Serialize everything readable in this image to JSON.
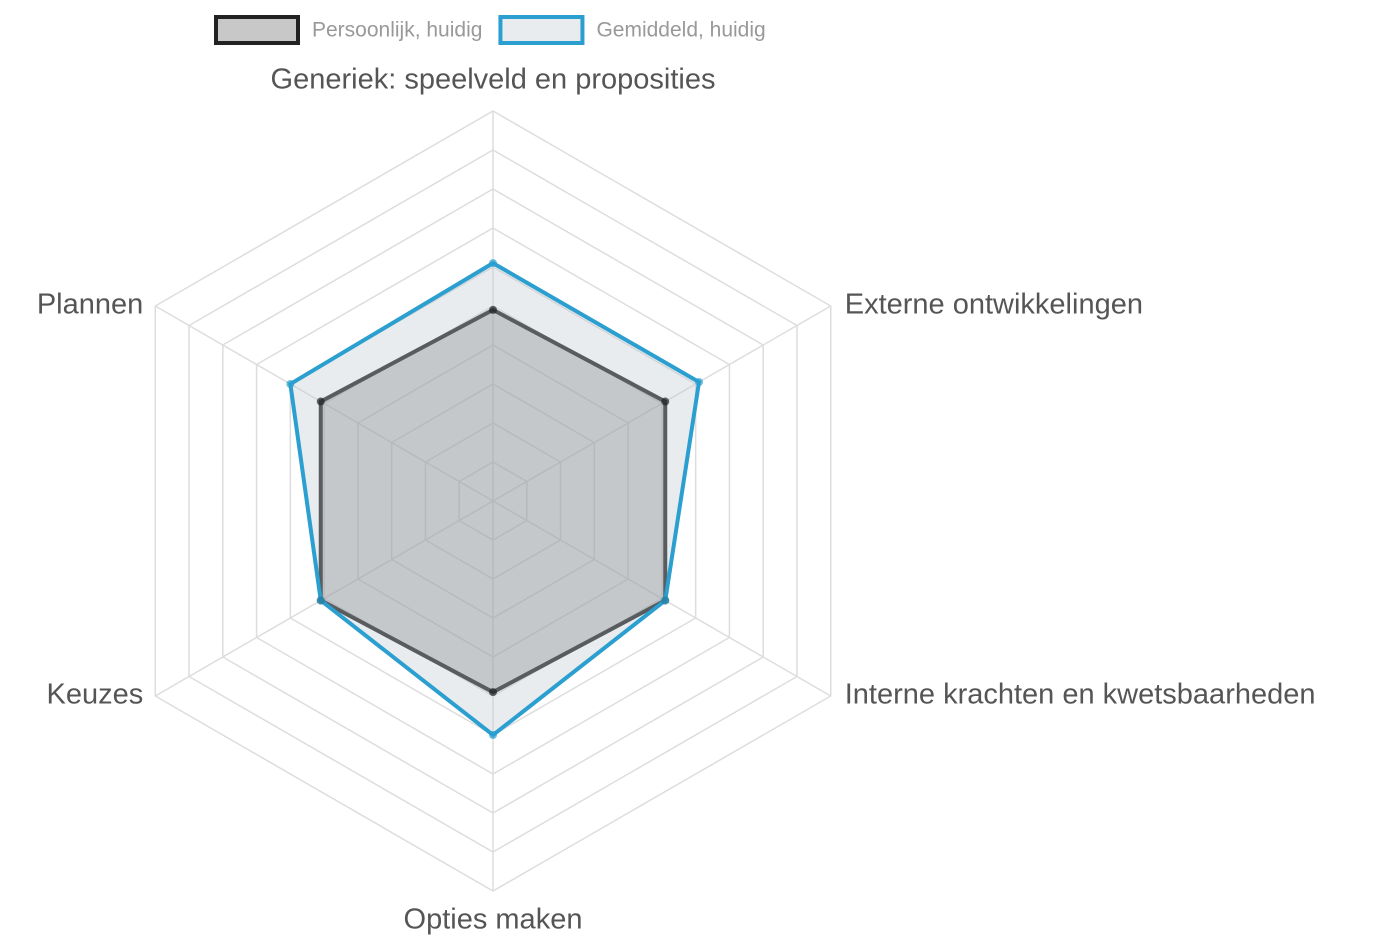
{
  "chart_data": {
    "type": "radar",
    "categories": [
      "Generiek: speelveld en proposities",
      "Externe ontwikkelingen",
      "Interne krachten en kwetsbaarheden",
      "Opties maken",
      "Keuzes",
      "Plannen"
    ],
    "series": [
      {
        "name": "Persoonlijk, huidig",
        "color": "#222222",
        "fill": "rgba(110,110,110,0.38)",
        "values": [
          4.9,
          5.1,
          5.1,
          4.9,
          5.1,
          5.1
        ]
      },
      {
        "name": "Gemiddeld, huidig",
        "color": "#2a9fd0",
        "fill": "rgba(190,200,210,0.35)",
        "values": [
          6.1,
          6.1,
          5.1,
          6.0,
          5.1,
          6.0
        ]
      }
    ],
    "rlim": [
      0,
      10
    ],
    "rticks": [
      1,
      2,
      3,
      4,
      5,
      6,
      7,
      8,
      9,
      10
    ],
    "grid": true,
    "legend": "top"
  }
}
